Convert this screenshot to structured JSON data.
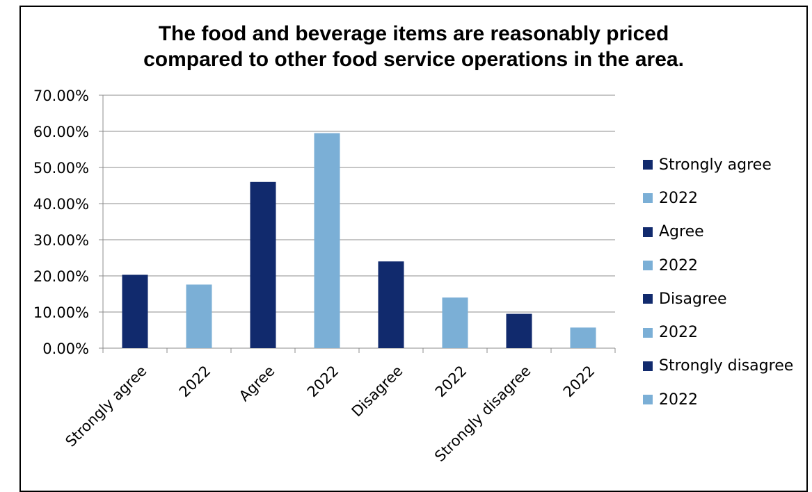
{
  "chart_data": {
    "type": "bar",
    "title_lines": [
      "The food and beverage items are reasonably priced",
      "compared to other food service operations in the area."
    ],
    "categories": [
      "Strongly agree",
      "2022",
      "Agree",
      "2022",
      "Disagree",
      "2022",
      "Strongly disagree",
      "2022"
    ],
    "values": [
      20.3,
      17.6,
      46.0,
      59.5,
      24.0,
      14.0,
      9.5,
      5.7
    ],
    "bar_colors": [
      "#112A6D",
      "#7BAFD6",
      "#112A6D",
      "#7BAFD6",
      "#112A6D",
      "#7BAFD6",
      "#112A6D",
      "#7BAFD6"
    ],
    "ylim": [
      0,
      70
    ],
    "yticks": [
      0,
      10,
      20,
      30,
      40,
      50,
      60,
      70
    ],
    "ytick_labels": [
      "0.00%",
      "10.00%",
      "20.00%",
      "30.00%",
      "40.00%",
      "50.00%",
      "60.00%",
      "70.00%"
    ],
    "grid": true,
    "legend_position": "right",
    "legend": [
      {
        "label": "Strongly agree",
        "color": "#112A6D"
      },
      {
        "label": "2022",
        "color": "#7BAFD6"
      },
      {
        "label": "Agree",
        "color": "#112A6D"
      },
      {
        "label": "2022",
        "color": "#7BAFD6"
      },
      {
        "label": "Disagree",
        "color": "#112A6D"
      },
      {
        "label": "2022",
        "color": "#7BAFD6"
      },
      {
        "label": "Strongly disagree",
        "color": "#112A6D"
      },
      {
        "label": "2022",
        "color": "#7BAFD6"
      }
    ]
  }
}
